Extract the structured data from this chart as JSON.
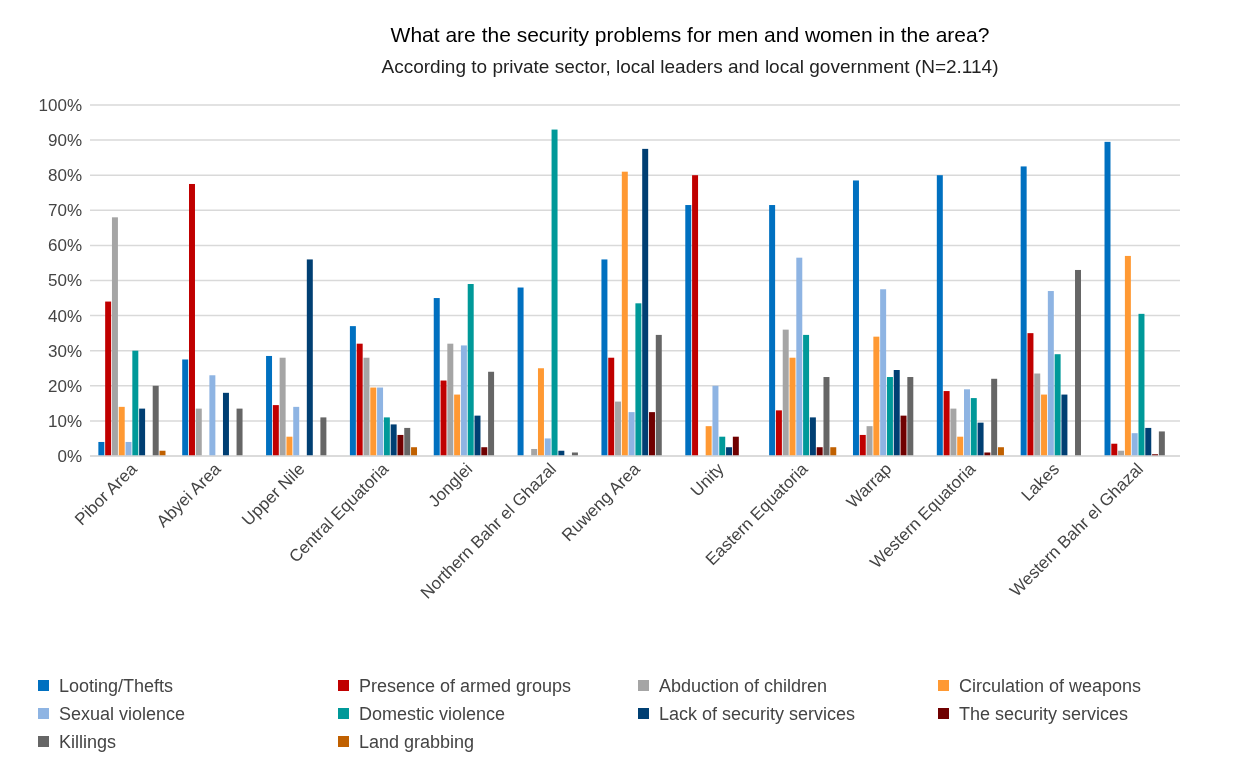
{
  "chart_data": {
    "type": "bar",
    "title": "What are the security problems for men and women in the area?",
    "subtitle": "According to private sector, local leaders and  local government (N=2.114)",
    "categories": [
      "Pibor Area",
      "Abyei  Area",
      "Upper Nile",
      "Central Equatoria",
      "Jonglei",
      "Northern Bahr el Ghazal",
      "Ruweng  Area",
      "Unity",
      "Eastern Equatoria",
      "Warrap",
      "Western Equatoria",
      "Lakes",
      "Western Bahr el Ghazal"
    ],
    "series": [
      {
        "name": "Looting/Thefts",
        "color": "#0070c0",
        "values": [
          4,
          27.5,
          28.5,
          37,
          45,
          48,
          56,
          71.5,
          71.5,
          78.5,
          80,
          82.5,
          89.5
        ]
      },
      {
        "name": "Presence of armed groups",
        "color": "#c00000",
        "values": [
          44,
          77.5,
          14.5,
          32,
          21.5,
          null,
          28,
          80,
          13,
          6,
          18.5,
          35,
          3.5
        ]
      },
      {
        "name": "Abduction of children",
        "color": "#a5a5a5",
        "values": [
          68,
          13.5,
          28,
          28,
          32,
          2,
          15.5,
          0,
          36,
          8.5,
          13.5,
          23.5,
          1.5
        ]
      },
      {
        "name": "Circulation of weapons",
        "color": "#ff9933",
        "values": [
          14,
          0,
          5.5,
          19.5,
          17.5,
          25,
          81,
          8.5,
          28,
          34,
          5.5,
          17.5,
          57
        ]
      },
      {
        "name": "Sexual violence",
        "color": "#8eb4e3",
        "values": [
          4,
          23,
          14,
          19.5,
          31.5,
          5,
          12.5,
          20,
          56.5,
          47.5,
          19,
          47,
          6.5
        ]
      },
      {
        "name": "Domestic violence",
        "color": "#009999",
        "values": [
          30,
          0,
          0,
          11,
          49,
          93,
          43.5,
          5.5,
          34.5,
          22.5,
          16.5,
          29,
          40.5
        ]
      },
      {
        "name": "Lack of security services",
        "color": "#003f73",
        "values": [
          13.5,
          18,
          56,
          9,
          11.5,
          1.5,
          87.5,
          2.5,
          11,
          24.5,
          9.5,
          17.5,
          8
        ]
      },
      {
        "name": "The security services",
        "color": "#700000",
        "values": [
          0,
          0,
          null,
          6,
          2.5,
          null,
          12.5,
          5.5,
          2.5,
          11.5,
          1,
          0,
          0.5
        ]
      },
      {
        "name": "Killings",
        "color": "#666666",
        "values": [
          20,
          13.5,
          11,
          8,
          24,
          1,
          34.5,
          0,
          22.5,
          22.5,
          22,
          53,
          7
        ]
      },
      {
        "name": "Land grabbing",
        "color": "#c06000",
        "values": [
          1.5,
          0,
          0,
          2.5,
          null,
          0,
          0,
          0,
          2.5,
          0,
          2.5,
          0,
          0
        ]
      }
    ],
    "ylim": [
      0,
      100
    ],
    "yticks": [
      {
        "value": 0,
        "label": "0%"
      },
      {
        "value": 10,
        "label": "10%"
      },
      {
        "value": 20,
        "label": "20%"
      },
      {
        "value": 30,
        "label": "30%"
      },
      {
        "value": 40,
        "label": "40%"
      },
      {
        "value": 50,
        "label": "50%"
      },
      {
        "value": 60,
        "label": "60%"
      },
      {
        "value": 70,
        "label": "70%"
      },
      {
        "value": 80,
        "label": "80%"
      },
      {
        "value": 90,
        "label": "90%"
      },
      {
        "value": 100,
        "label": "100%"
      }
    ],
    "grid": "y",
    "legend": "bottom"
  }
}
